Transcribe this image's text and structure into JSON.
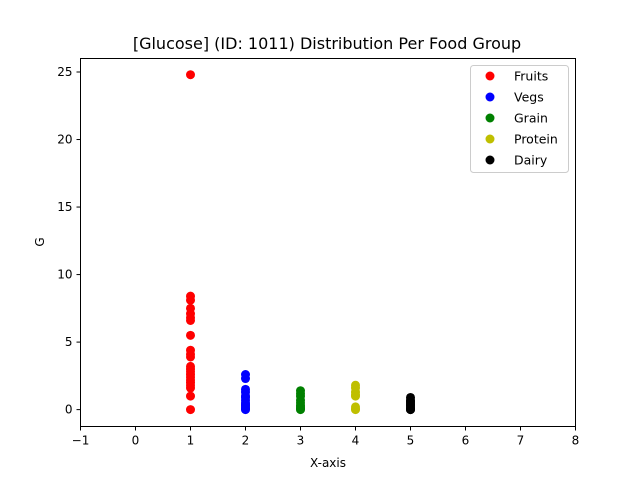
{
  "chart_data": {
    "type": "scatter",
    "title": "[Glucose] (ID: 1011) Distribution Per Food Group",
    "xlabel": "X-axis",
    "ylabel": "G",
    "xlim": [
      -1,
      8
    ],
    "ylim": [
      -1.25,
      26.0
    ],
    "xticks": [
      -1,
      0,
      1,
      2,
      3,
      4,
      5,
      6,
      7,
      8
    ],
    "yticks": [
      0,
      5,
      10,
      15,
      20,
      25
    ],
    "grid": false,
    "legend_position": "top-right",
    "series": [
      {
        "name": "Fruits",
        "color": "#ff0000",
        "x": [
          1,
          1,
          1,
          1,
          1,
          1,
          1,
          1,
          1,
          1,
          1,
          1,
          1,
          1,
          1,
          1,
          1,
          1,
          1,
          1,
          1,
          1
        ],
        "y": [
          24.8,
          8.4,
          8.1,
          7.5,
          7.1,
          6.8,
          6.6,
          5.5,
          4.4,
          4.1,
          3.9,
          3.2,
          3.0,
          2.8,
          2.6,
          2.4,
          2.2,
          2.0,
          1.8,
          1.6,
          1.0,
          0.0
        ]
      },
      {
        "name": "Vegs",
        "color": "#0000ff",
        "x": [
          2,
          2,
          2,
          2,
          2,
          2,
          2,
          2,
          2,
          2,
          2,
          2,
          2,
          2
        ],
        "y": [
          2.6,
          2.3,
          1.5,
          1.3,
          1.0,
          0.9,
          0.7,
          0.5,
          0.4,
          0.3,
          0.2,
          0.1,
          0.05,
          0.0
        ]
      },
      {
        "name": "Grain",
        "color": "#008000",
        "x": [
          3,
          3,
          3,
          3,
          3,
          3,
          3,
          3,
          3,
          3
        ],
        "y": [
          1.4,
          1.2,
          1.0,
          0.7,
          0.5,
          0.3,
          0.2,
          0.1,
          0.05,
          0.0
        ]
      },
      {
        "name": "Protein",
        "color": "#bfbf00",
        "x": [
          4,
          4,
          4,
          4,
          4,
          4,
          4,
          4
        ],
        "y": [
          1.8,
          1.6,
          1.3,
          1.1,
          1.0,
          0.2,
          0.05,
          0.0
        ]
      },
      {
        "name": "Dairy",
        "color": "#000000",
        "x": [
          5,
          5,
          5,
          5,
          5,
          5,
          5,
          5,
          5,
          5,
          5
        ],
        "y": [
          0.9,
          0.7,
          0.6,
          0.5,
          0.4,
          0.3,
          0.2,
          0.1,
          0.05,
          0.0,
          0.0
        ]
      }
    ]
  }
}
